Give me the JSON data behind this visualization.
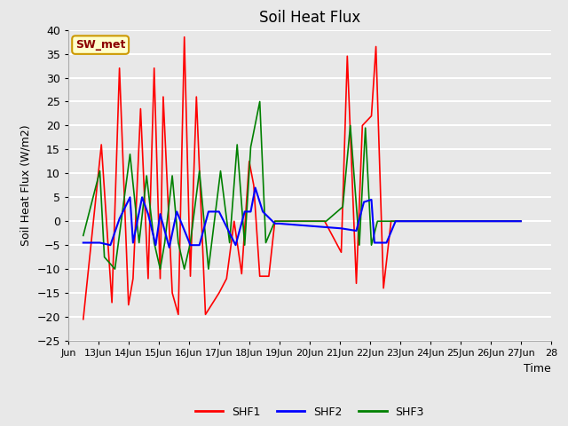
{
  "title": "Soil Heat Flux",
  "xlabel": "Time",
  "ylabel": "Soil Heat Flux (W/m2)",
  "ylim": [
    -25,
    40
  ],
  "yticks": [
    -25,
    -20,
    -15,
    -10,
    -5,
    0,
    5,
    10,
    15,
    20,
    25,
    30,
    35,
    40
  ],
  "background_color": "#e8e8e8",
  "plot_bg_color": "#e8e8e8",
  "grid_color": "white",
  "line_colors": {
    "SHF1": "red",
    "SHF2": "blue",
    "SHF3": "green"
  },
  "line_widths": {
    "SHF1": 1.2,
    "SHF2": 1.5,
    "SHF3": 1.2
  },
  "annotation_box": {
    "text": "SW_met",
    "facecolor": "#ffffcc",
    "edgecolor": "#cc9900",
    "textcolor": "#8b0000",
    "fontsize": 9,
    "fontweight": "bold"
  },
  "legend_labels": [
    "SHF1",
    "SHF2",
    "SHF3"
  ],
  "legend_colors": [
    "red",
    "blue",
    "green"
  ],
  "x_start_day": 12.0,
  "x_end_day": 28.0,
  "xtick_days": [
    12,
    13,
    14,
    15,
    16,
    17,
    18,
    19,
    20,
    21,
    22,
    23,
    24,
    25,
    26,
    27,
    28
  ],
  "xtick_labels": [
    "Jun",
    "13Jun",
    "14Jun",
    "15Jun",
    "16Jun",
    "17Jun",
    "18Jun",
    "19Jun",
    "20Jun",
    "21Jun",
    "22Jun",
    "23Jun",
    "24Jun",
    "25Jun",
    "26Jun",
    "27Jun",
    "28"
  ],
  "shf1_x": [
    12.5,
    13.1,
    13.45,
    13.7,
    14.0,
    14.15,
    14.4,
    14.65,
    14.85,
    15.05,
    15.15,
    15.45,
    15.65,
    15.85,
    16.05,
    16.25,
    16.55,
    17.0,
    17.25,
    17.5,
    17.75,
    18.0,
    18.15,
    18.35,
    18.65,
    18.85,
    19.0,
    19.3,
    20.5,
    21.05,
    21.25,
    21.55,
    21.75,
    22.05,
    22.2,
    22.45,
    22.7,
    23.0,
    27.0
  ],
  "shf1_y": [
    -20.5,
    16.0,
    -17.0,
    32.0,
    -17.5,
    -12.0,
    23.5,
    -12.0,
    32.0,
    -12.0,
    26.0,
    -15.0,
    -19.5,
    38.5,
    -11.5,
    26.0,
    -19.5,
    -15.0,
    -12.0,
    0.0,
    -11.0,
    12.5,
    7.5,
    -11.5,
    -11.5,
    0.0,
    0.0,
    0.0,
    0.0,
    -6.5,
    34.5,
    -13.0,
    20.0,
    22.0,
    36.5,
    -14.0,
    0.0,
    0.0,
    0.0
  ],
  "shf2_x": [
    12.5,
    13.05,
    13.4,
    13.7,
    14.05,
    14.15,
    14.45,
    14.65,
    14.9,
    15.05,
    15.35,
    15.6,
    16.05,
    16.35,
    16.65,
    17.0,
    17.55,
    17.85,
    18.05,
    18.2,
    18.45,
    18.85,
    19.0,
    21.05,
    21.55,
    21.8,
    22.05,
    22.15,
    22.55,
    22.85,
    23.0,
    27.0
  ],
  "shf2_y": [
    -4.5,
    -4.5,
    -5.0,
    0.5,
    5.0,
    -4.5,
    5.0,
    1.5,
    -5.0,
    1.5,
    -5.5,
    2.0,
    -5.0,
    -5.0,
    2.0,
    2.0,
    -5.0,
    2.0,
    2.0,
    7.0,
    2.0,
    -0.5,
    -0.5,
    -1.5,
    -2.0,
    4.0,
    4.5,
    -4.5,
    -4.5,
    0.0,
    0.0,
    0.0
  ],
  "shf3_x": [
    12.5,
    13.05,
    13.2,
    13.55,
    14.05,
    14.35,
    14.6,
    14.85,
    15.05,
    15.2,
    15.45,
    15.65,
    15.85,
    16.05,
    16.35,
    16.65,
    17.05,
    17.35,
    17.6,
    17.85,
    18.05,
    18.35,
    18.55,
    18.85,
    19.0,
    20.55,
    21.1,
    21.35,
    21.65,
    21.85,
    22.05,
    22.25,
    22.55,
    23.0,
    27.0
  ],
  "shf3_y": [
    -3.0,
    10.5,
    -7.5,
    -10.0,
    14.0,
    -4.5,
    9.5,
    -4.5,
    -10.0,
    -4.5,
    9.5,
    -4.5,
    -10.0,
    -4.5,
    10.5,
    -10.0,
    10.5,
    -4.5,
    16.0,
    -5.0,
    15.5,
    25.0,
    -4.5,
    0.0,
    0.0,
    0.0,
    3.0,
    20.0,
    -5.0,
    19.5,
    -5.0,
    0.0,
    0.0,
    0.0,
    0.0
  ]
}
